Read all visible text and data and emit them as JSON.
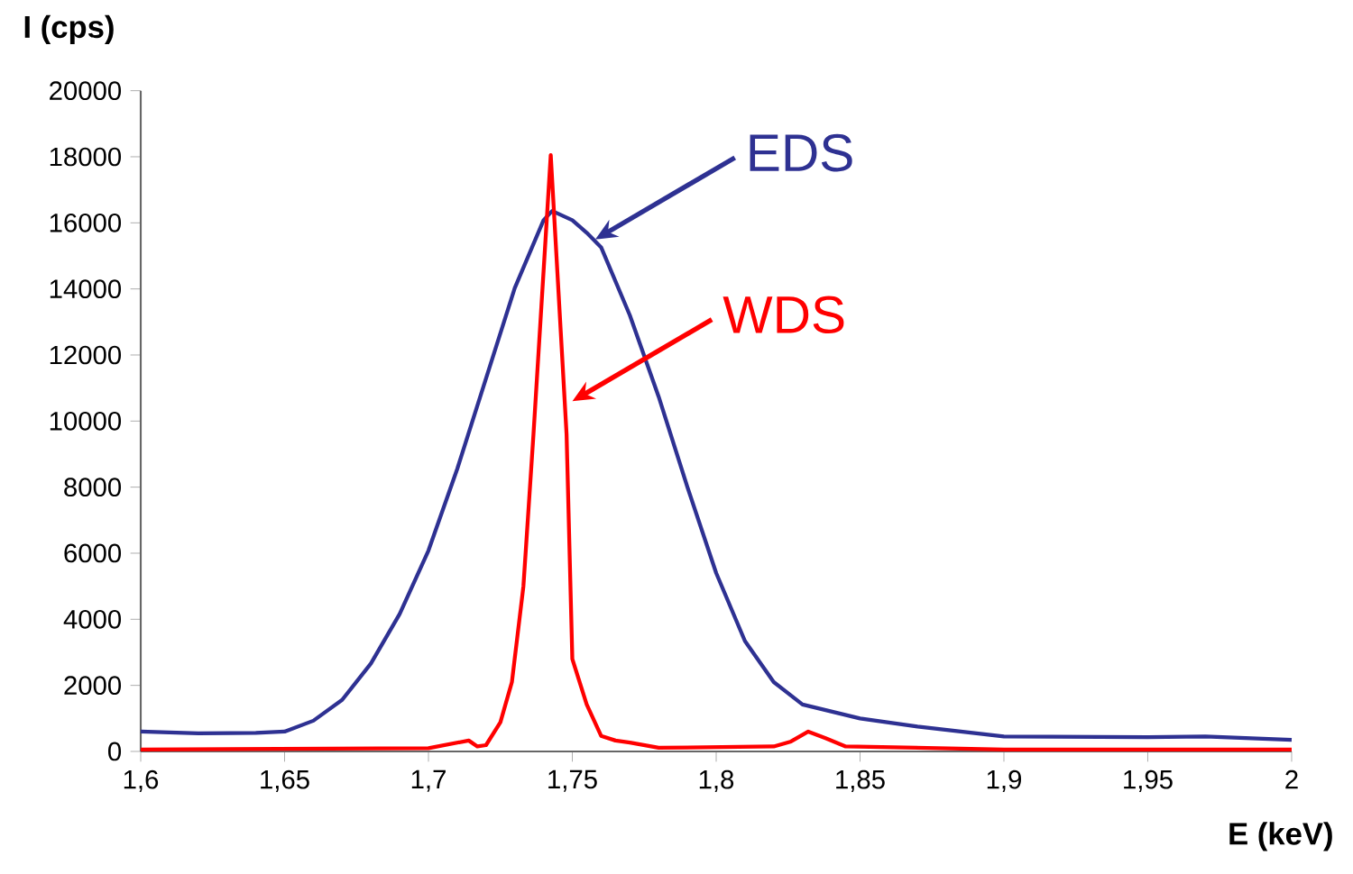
{
  "chart_data": {
    "type": "line",
    "xlabel": "E (keV)",
    "ylabel": "I (cps)",
    "xlim": [
      1.6,
      2.0
    ],
    "xticks": [
      {
        "value": 1.6,
        "label": "1,6"
      },
      {
        "value": 1.65,
        "label": "1,65"
      },
      {
        "value": 1.7,
        "label": "1,7"
      },
      {
        "value": 1.75,
        "label": "1,75"
      },
      {
        "value": 1.8,
        "label": "1,8"
      },
      {
        "value": 1.85,
        "label": "1,85"
      },
      {
        "value": 1.9,
        "label": "1,9"
      },
      {
        "value": 1.95,
        "label": "1,95"
      },
      {
        "value": 2.0,
        "label": "2"
      }
    ],
    "ylim": [
      0,
      20000
    ],
    "yticks": [
      0,
      2000,
      4000,
      6000,
      8000,
      10000,
      12000,
      14000,
      16000,
      18000,
      20000
    ],
    "grid": false,
    "marker": "none",
    "line_style": "solid",
    "series": [
      {
        "color": "#2e3192",
        "x": [
          1.6,
          1.62,
          1.64,
          1.65,
          1.66,
          1.67,
          1.68,
          1.69,
          1.7,
          1.71,
          1.72,
          1.73,
          1.74,
          1.743,
          1.75,
          1.755,
          1.76,
          1.77,
          1.78,
          1.79,
          1.8,
          1.81,
          1.82,
          1.83,
          1.85,
          1.87,
          1.9,
          1.95,
          1.97,
          2.0
        ],
        "values": [
          600,
          550,
          560,
          600,
          930,
          1560,
          2660,
          4160,
          6080,
          8550,
          11290,
          14030,
          16080,
          16360,
          16080,
          15700,
          15260,
          13200,
          10740,
          8000,
          5400,
          3340,
          2100,
          1420,
          1000,
          750,
          450,
          430,
          450,
          350
        ]
      },
      {
        "color": "#ff0000",
        "x": [
          1.6,
          1.7,
          1.714,
          1.717,
          1.72,
          1.725,
          1.729,
          1.733,
          1.7365,
          1.7425,
          1.748,
          1.75,
          1.755,
          1.76,
          1.765,
          1.77,
          1.78,
          1.82,
          1.826,
          1.832,
          1.838,
          1.845,
          1.9,
          2.0
        ],
        "values": [
          60,
          100,
          330,
          150,
          190,
          880,
          2100,
          5000,
          9600,
          18050,
          9600,
          2800,
          1420,
          470,
          330,
          270,
          110,
          150,
          300,
          600,
          400,
          150,
          60,
          60
        ]
      }
    ],
    "annotations": [
      {
        "text": "EDS",
        "x": 1.758,
        "y": 15500
      },
      {
        "text": "WDS",
        "x": 1.75,
        "y": 10600
      }
    ]
  }
}
